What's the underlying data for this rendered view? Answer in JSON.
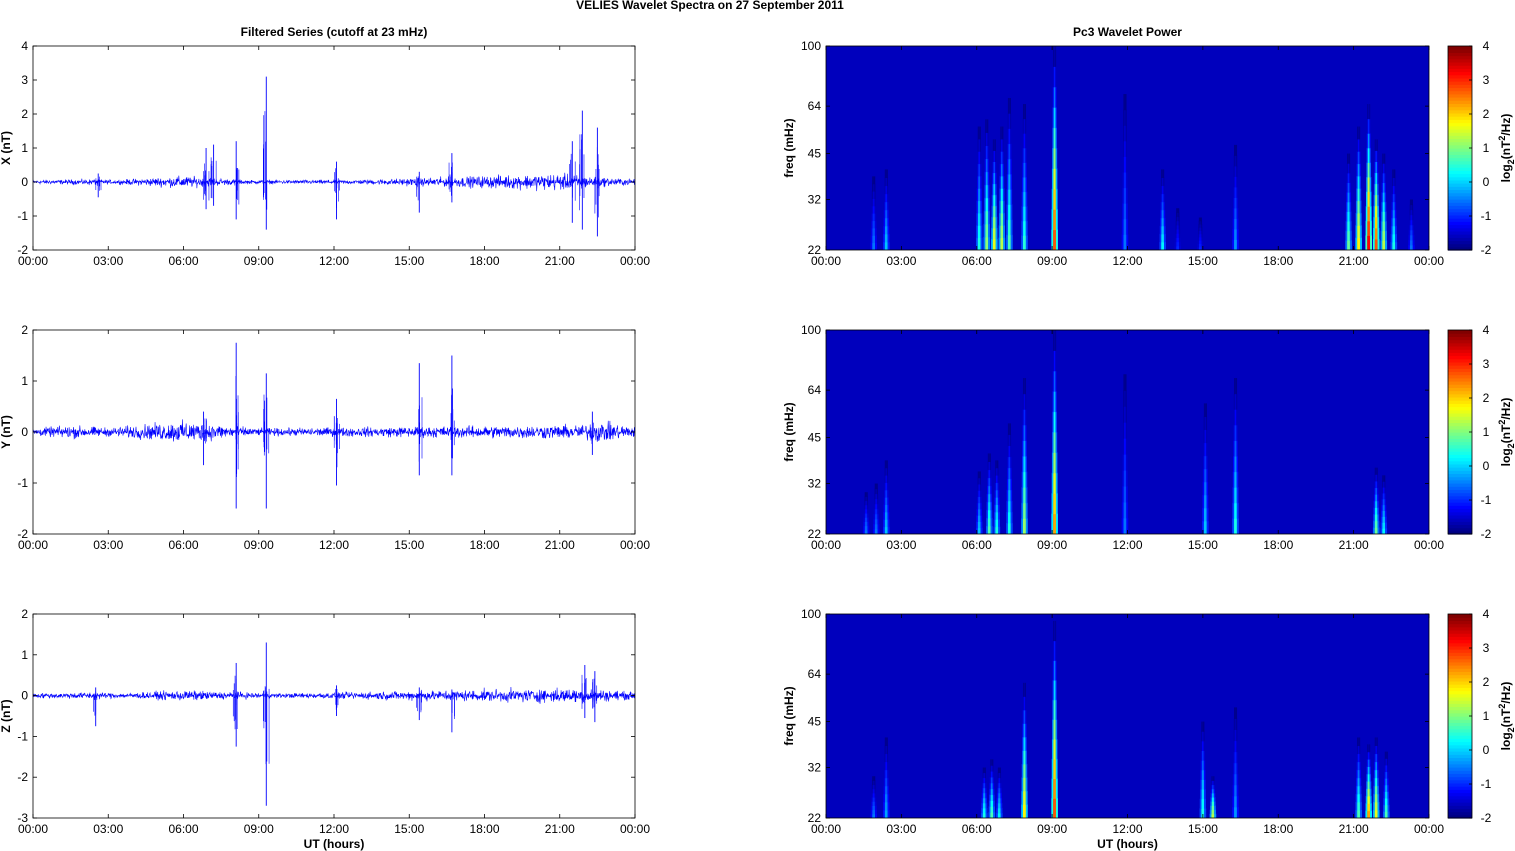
{
  "figure_title": "VELIES Wavelet Spectra on 27 September 2011",
  "chart_data": [
    {
      "type": "line",
      "title": "Filtered Series (cutoff at 23 mHz)",
      "ylabel": "X (nT)",
      "xlabel": "",
      "xlim": [
        0,
        24
      ],
      "ylim": [
        -2,
        4
      ],
      "yticks": [
        "-2",
        "-1",
        "0",
        "1",
        "2",
        "3",
        "4"
      ],
      "xticks": [
        "00:00",
        "03:00",
        "06:00",
        "09:00",
        "12:00",
        "15:00",
        "18:00",
        "21:00",
        "00:00"
      ],
      "color": "#0000ff",
      "baseline_amplitude": [
        [
          0,
          0.08
        ],
        [
          2.5,
          0.12
        ],
        [
          3.2,
          0.08
        ],
        [
          6,
          0.25
        ],
        [
          7.5,
          0.15
        ],
        [
          8.5,
          0.08
        ],
        [
          13,
          0.09
        ],
        [
          21,
          0.35
        ],
        [
          22.5,
          0.2
        ],
        [
          24,
          0.12
        ]
      ],
      "spikes": [
        {
          "t": 2.6,
          "max": 0.25,
          "min": -0.45
        },
        {
          "t": 6.9,
          "max": 1.0,
          "min": -0.8
        },
        {
          "t": 7.2,
          "max": 1.1,
          "min": -0.7
        },
        {
          "t": 8.1,
          "max": 1.2,
          "min": -1.1
        },
        {
          "t": 9.3,
          "max": 3.1,
          "min": -1.4
        },
        {
          "t": 12.1,
          "max": 0.6,
          "min": -1.1
        },
        {
          "t": 15.4,
          "max": 0.3,
          "min": -0.9
        },
        {
          "t": 16.7,
          "max": 0.85,
          "min": -0.6
        },
        {
          "t": 21.5,
          "max": 1.2,
          "min": -1.2
        },
        {
          "t": 21.9,
          "max": 2.1,
          "min": -1.4
        },
        {
          "t": 22.5,
          "max": 1.6,
          "min": -1.6
        }
      ]
    },
    {
      "type": "line",
      "title": "",
      "ylabel": "Y (nT)",
      "xlabel": "",
      "xlim": [
        0,
        24
      ],
      "ylim": [
        -2,
        2
      ],
      "yticks": [
        "-2",
        "-1",
        "0",
        "1",
        "2"
      ],
      "xticks": [
        "00:00",
        "03:00",
        "06:00",
        "09:00",
        "12:00",
        "15:00",
        "18:00",
        "21:00",
        "00:00"
      ],
      "color": "#0000ff",
      "baseline_amplitude": [
        [
          0,
          0.1
        ],
        [
          1.5,
          0.18
        ],
        [
          3,
          0.12
        ],
        [
          6,
          0.3
        ],
        [
          7.5,
          0.2
        ],
        [
          9,
          0.1
        ],
        [
          22,
          0.2
        ],
        [
          22.5,
          0.3
        ],
        [
          24,
          0.15
        ]
      ],
      "spikes": [
        {
          "t": 6.8,
          "max": 0.4,
          "min": -0.65
        },
        {
          "t": 8.1,
          "max": 1.75,
          "min": -1.5
        },
        {
          "t": 9.3,
          "max": 1.15,
          "min": -1.5
        },
        {
          "t": 12.1,
          "max": 0.65,
          "min": -1.05
        },
        {
          "t": 15.4,
          "max": 1.35,
          "min": -0.85
        },
        {
          "t": 16.7,
          "max": 1.5,
          "min": -0.85
        },
        {
          "t": 22.3,
          "max": 0.4,
          "min": -0.45
        }
      ]
    },
    {
      "type": "line",
      "title": "",
      "ylabel": "Z (nT)",
      "xlabel": "UT (hours)",
      "xlim": [
        0,
        24
      ],
      "ylim": [
        -3,
        2
      ],
      "yticks": [
        "-3",
        "-2",
        "-1",
        "0",
        "1",
        "2"
      ],
      "xticks": [
        "00:00",
        "03:00",
        "06:00",
        "09:00",
        "12:00",
        "15:00",
        "18:00",
        "21:00",
        "00:00"
      ],
      "color": "#0000ff",
      "baseline_amplitude": [
        [
          0,
          0.08
        ],
        [
          2.5,
          0.12
        ],
        [
          3.5,
          0.08
        ],
        [
          6,
          0.18
        ],
        [
          8,
          0.12
        ],
        [
          10,
          0.08
        ],
        [
          21,
          0.25
        ],
        [
          22.5,
          0.22
        ],
        [
          24,
          0.12
        ]
      ],
      "spikes": [
        {
          "t": 2.5,
          "max": 0.2,
          "min": -0.75
        },
        {
          "t": 8.1,
          "max": 0.8,
          "min": -1.25
        },
        {
          "t": 9.3,
          "max": 1.3,
          "min": -2.7
        },
        {
          "t": 12.1,
          "max": 0.25,
          "min": -0.5
        },
        {
          "t": 15.4,
          "max": 0.2,
          "min": -0.6
        },
        {
          "t": 16.7,
          "max": 0.15,
          "min": -0.9
        },
        {
          "t": 22.0,
          "max": 0.75,
          "min": -0.55
        },
        {
          "t": 22.4,
          "max": 0.6,
          "min": -0.65
        }
      ]
    },
    {
      "type": "heatmap",
      "title": "Pc3 Wavelet Power",
      "ylabel": "freq (mHz)",
      "xlabel": "",
      "xlim": [
        0,
        24
      ],
      "ylim": [
        22,
        100
      ],
      "yscale": "log",
      "yticks": [
        22,
        32,
        45,
        64,
        100
      ],
      "xticks": [
        "00:00",
        "03:00",
        "06:00",
        "09:00",
        "12:00",
        "15:00",
        "18:00",
        "21:00",
        "00:00"
      ],
      "colorbar": {
        "label": "log2(nT2/Hz)",
        "range": [
          -2,
          4
        ],
        "ticks": [
          "-2",
          "-1",
          "0",
          "1",
          "2",
          "3",
          "4"
        ],
        "colormap": "jet"
      },
      "background_level": -2,
      "bursts": [
        {
          "t": 1.9,
          "fmax": 38,
          "peak": -0.5
        },
        {
          "t": 2.4,
          "fmax": 40,
          "peak": 0.0
        },
        {
          "t": 6.1,
          "fmax": 55,
          "peak": 0.5
        },
        {
          "t": 6.4,
          "fmax": 58,
          "peak": 1.2
        },
        {
          "t": 6.7,
          "fmax": 50,
          "peak": 1.8
        },
        {
          "t": 7.0,
          "fmax": 55,
          "peak": 1.5
        },
        {
          "t": 7.3,
          "fmax": 68,
          "peak": 0.8
        },
        {
          "t": 7.9,
          "fmax": 65,
          "peak": 0.6
        },
        {
          "t": 9.1,
          "fmax": 100,
          "peak": 3.0
        },
        {
          "t": 11.9,
          "fmax": 70,
          "peak": -0.5
        },
        {
          "t": 13.4,
          "fmax": 40,
          "peak": 0.3
        },
        {
          "t": 14.0,
          "fmax": 30,
          "peak": -1.0
        },
        {
          "t": 14.9,
          "fmax": 28,
          "peak": -1.0
        },
        {
          "t": 16.3,
          "fmax": 48,
          "peak": -0.3
        },
        {
          "t": 20.8,
          "fmax": 45,
          "peak": 1.0
        },
        {
          "t": 21.2,
          "fmax": 55,
          "peak": 2.0
        },
        {
          "t": 21.6,
          "fmax": 65,
          "peak": 3.5
        },
        {
          "t": 21.9,
          "fmax": 50,
          "peak": 3.0
        },
        {
          "t": 22.2,
          "fmax": 45,
          "peak": 1.5
        },
        {
          "t": 22.6,
          "fmax": 40,
          "peak": 0.5
        },
        {
          "t": 23.3,
          "fmax": 32,
          "peak": -0.5
        }
      ]
    },
    {
      "type": "heatmap",
      "title": "",
      "ylabel": "freq (mHz)",
      "xlabel": "",
      "xlim": [
        0,
        24
      ],
      "ylim": [
        22,
        100
      ],
      "yscale": "log",
      "yticks": [
        22,
        32,
        45,
        64,
        100
      ],
      "xticks": [
        "00:00",
        "03:00",
        "06:00",
        "09:00",
        "12:00",
        "15:00",
        "18:00",
        "21:00",
        "00:00"
      ],
      "colorbar": {
        "label": "log2(nT2/Hz)",
        "range": [
          -2,
          4
        ],
        "ticks": [
          "-2",
          "-1",
          "0",
          "1",
          "2",
          "3",
          "4"
        ],
        "colormap": "jet"
      },
      "background_level": -2,
      "bursts": [
        {
          "t": 1.6,
          "fmax": 30,
          "peak": -0.5
        },
        {
          "t": 2.0,
          "fmax": 32,
          "peak": -0.5
        },
        {
          "t": 2.4,
          "fmax": 38,
          "peak": 0.0
        },
        {
          "t": 6.1,
          "fmax": 35,
          "peak": 0.0
        },
        {
          "t": 6.5,
          "fmax": 40,
          "peak": 0.8
        },
        {
          "t": 6.8,
          "fmax": 38,
          "peak": 0.5
        },
        {
          "t": 7.3,
          "fmax": 50,
          "peak": 0.5
        },
        {
          "t": 7.9,
          "fmax": 70,
          "peak": 1.3
        },
        {
          "t": 9.1,
          "fmax": 100,
          "peak": 2.5
        },
        {
          "t": 11.9,
          "fmax": 72,
          "peak": -0.5
        },
        {
          "t": 15.1,
          "fmax": 58,
          "peak": 0.0
        },
        {
          "t": 16.3,
          "fmax": 70,
          "peak": 0.5
        },
        {
          "t": 21.9,
          "fmax": 36,
          "peak": 1.0
        },
        {
          "t": 22.2,
          "fmax": 34,
          "peak": 0.3
        }
      ]
    },
    {
      "type": "heatmap",
      "title": "",
      "ylabel": "freq (mHz)",
      "xlabel": "UT (hours)",
      "xlim": [
        0,
        24
      ],
      "ylim": [
        22,
        100
      ],
      "yscale": "log",
      "yticks": [
        22,
        32,
        45,
        64,
        100
      ],
      "xticks": [
        "00:00",
        "03:00",
        "06:00",
        "09:00",
        "12:00",
        "15:00",
        "18:00",
        "21:00",
        "00:00"
      ],
      "colorbar": {
        "label": "log2(nT2/Hz)",
        "range": [
          -2,
          4
        ],
        "ticks": [
          "-2",
          "-1",
          "0",
          "1",
          "2",
          "3",
          "4"
        ],
        "colormap": "jet"
      },
      "background_level": -2,
      "bursts": [
        {
          "t": 1.9,
          "fmax": 30,
          "peak": -0.5
        },
        {
          "t": 2.4,
          "fmax": 40,
          "peak": -0.2
        },
        {
          "t": 6.3,
          "fmax": 32,
          "peak": 0.5
        },
        {
          "t": 6.6,
          "fmax": 34,
          "peak": 0.8
        },
        {
          "t": 6.9,
          "fmax": 32,
          "peak": 0.3
        },
        {
          "t": 7.9,
          "fmax": 60,
          "peak": 2.0
        },
        {
          "t": 9.1,
          "fmax": 95,
          "peak": 3.0
        },
        {
          "t": 15.0,
          "fmax": 45,
          "peak": 0.5
        },
        {
          "t": 15.4,
          "fmax": 30,
          "peak": 1.5
        },
        {
          "t": 16.3,
          "fmax": 50,
          "peak": -0.3
        },
        {
          "t": 21.2,
          "fmax": 40,
          "peak": 0.8
        },
        {
          "t": 21.6,
          "fmax": 38,
          "peak": 2.5
        },
        {
          "t": 21.9,
          "fmax": 40,
          "peak": 1.8
        },
        {
          "t": 22.3,
          "fmax": 36,
          "peak": 0.8
        }
      ]
    }
  ]
}
